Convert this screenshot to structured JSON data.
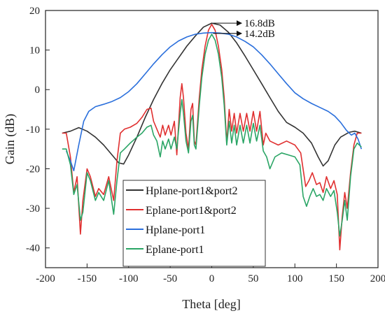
{
  "chart_data": {
    "type": "line",
    "xlabel": "Theta [deg]",
    "ylabel": "Gain (dB)",
    "xlim": [
      -200,
      200
    ],
    "ylim": [
      -45,
      20
    ],
    "xticks": [
      -200,
      -150,
      -100,
      -50,
      0,
      50,
      100,
      150,
      200
    ],
    "yticks": [
      -40,
      -30,
      -20,
      -10,
      0,
      10,
      20
    ],
    "grid": false,
    "legend_position": "bottom-left",
    "series": [
      {
        "name": "Hplane-port1&port2",
        "color": "#333333",
        "points": [
          [
            -180,
            -11
          ],
          [
            -170,
            -10.5
          ],
          [
            -160,
            -9.6
          ],
          [
            -150,
            -10.5
          ],
          [
            -140,
            -12
          ],
          [
            -130,
            -14
          ],
          [
            -120,
            -16.5
          ],
          [
            -112,
            -18.5
          ],
          [
            -106,
            -18.8
          ],
          [
            -100,
            -16.5
          ],
          [
            -90,
            -12
          ],
          [
            -80,
            -7
          ],
          [
            -70,
            -2.5
          ],
          [
            -60,
            1.5
          ],
          [
            -50,
            5
          ],
          [
            -40,
            8
          ],
          [
            -30,
            11
          ],
          [
            -20,
            13.5
          ],
          [
            -10,
            15.8
          ],
          [
            0,
            16.8
          ],
          [
            10,
            16.3
          ],
          [
            20,
            14.5
          ],
          [
            30,
            11.8
          ],
          [
            40,
            8.5
          ],
          [
            50,
            5
          ],
          [
            60,
            1.5
          ],
          [
            70,
            -2
          ],
          [
            80,
            -5.5
          ],
          [
            90,
            -8.3
          ],
          [
            100,
            -9.5
          ],
          [
            110,
            -11
          ],
          [
            120,
            -13.5
          ],
          [
            128,
            -17
          ],
          [
            134,
            -19.3
          ],
          [
            140,
            -18
          ],
          [
            148,
            -14
          ],
          [
            155,
            -12
          ],
          [
            165,
            -10.8
          ],
          [
            172,
            -10.5
          ],
          [
            180,
            -11
          ]
        ]
      },
      {
        "name": "Eplane-port1&port2",
        "color": "#e03030",
        "points": [
          [
            -180,
            -11
          ],
          [
            -175,
            -11
          ],
          [
            -170,
            -17
          ],
          [
            -166,
            -26
          ],
          [
            -162,
            -22
          ],
          [
            -158,
            -36.5
          ],
          [
            -155,
            -28
          ],
          [
            -150,
            -20
          ],
          [
            -146,
            -22
          ],
          [
            -140,
            -27
          ],
          [
            -136,
            -25
          ],
          [
            -130,
            -26.5
          ],
          [
            -124,
            -22
          ],
          [
            -118,
            -28
          ],
          [
            -114,
            -18
          ],
          [
            -110,
            -11
          ],
          [
            -105,
            -10
          ],
          [
            -98,
            -9.5
          ],
          [
            -90,
            -8.5
          ],
          [
            -84,
            -7
          ],
          [
            -78,
            -5
          ],
          [
            -73,
            -4.7
          ],
          [
            -70,
            -8
          ],
          [
            -66,
            -10
          ],
          [
            -62,
            -12
          ],
          [
            -59,
            -9
          ],
          [
            -56,
            -11.5
          ],
          [
            -52,
            -9
          ],
          [
            -49,
            -11.5
          ],
          [
            -45,
            -8
          ],
          [
            -42,
            -16.5
          ],
          [
            -38,
            -2
          ],
          [
            -36,
            1.5
          ],
          [
            -34,
            -2
          ],
          [
            -31,
            -11
          ],
          [
            -28,
            -15
          ],
          [
            -25,
            -5
          ],
          [
            -23,
            -3.5
          ],
          [
            -21,
            -13
          ],
          [
            -19,
            -14
          ],
          [
            -15,
            -2
          ],
          [
            -12,
            5
          ],
          [
            -8,
            11
          ],
          [
            -4,
            15
          ],
          [
            0,
            16.5
          ],
          [
            4,
            15
          ],
          [
            8,
            11
          ],
          [
            12,
            5
          ],
          [
            15,
            -2
          ],
          [
            18,
            -13.5
          ],
          [
            21,
            -5
          ],
          [
            24,
            -10.5
          ],
          [
            27,
            -6
          ],
          [
            30,
            -11
          ],
          [
            34,
            -6
          ],
          [
            38,
            -10.5
          ],
          [
            42,
            -6
          ],
          [
            46,
            -10.5
          ],
          [
            50,
            -5.5
          ],
          [
            54,
            -10.5
          ],
          [
            58,
            -5.5
          ],
          [
            62,
            -14
          ],
          [
            65,
            -11
          ],
          [
            70,
            -13
          ],
          [
            80,
            -14
          ],
          [
            90,
            -13
          ],
          [
            100,
            -14
          ],
          [
            107,
            -16
          ],
          [
            113,
            -24.5
          ],
          [
            117,
            -23
          ],
          [
            121,
            -21
          ],
          [
            126,
            -24
          ],
          [
            130,
            -23.5
          ],
          [
            134,
            -26
          ],
          [
            138,
            -22
          ],
          [
            143,
            -25
          ],
          [
            147,
            -23
          ],
          [
            151,
            -26.5
          ],
          [
            154,
            -40.5
          ],
          [
            157,
            -32
          ],
          [
            160,
            -26
          ],
          [
            163,
            -30
          ],
          [
            167,
            -21
          ],
          [
            171,
            -14
          ],
          [
            175,
            -11
          ],
          [
            180,
            -11
          ]
        ]
      },
      {
        "name": "Hplane-port1",
        "color": "#2a6fdc",
        "points": [
          [
            -175,
            -15.5
          ],
          [
            -170,
            -18
          ],
          [
            -166,
            -20.5
          ],
          [
            -160,
            -14
          ],
          [
            -154,
            -8
          ],
          [
            -148,
            -5.5
          ],
          [
            -140,
            -4.3
          ],
          [
            -130,
            -3.7
          ],
          [
            -120,
            -3
          ],
          [
            -110,
            -2
          ],
          [
            -100,
            -0.5
          ],
          [
            -90,
            1.5
          ],
          [
            -80,
            4
          ],
          [
            -70,
            6.5
          ],
          [
            -60,
            8.8
          ],
          [
            -50,
            10.8
          ],
          [
            -40,
            12.3
          ],
          [
            -30,
            13.3
          ],
          [
            -20,
            14
          ],
          [
            -10,
            14.3
          ],
          [
            0,
            14.4
          ],
          [
            10,
            14.3
          ],
          [
            20,
            14
          ],
          [
            30,
            13.3
          ],
          [
            40,
            12.2
          ],
          [
            50,
            10.8
          ],
          [
            60,
            8.8
          ],
          [
            70,
            6.5
          ],
          [
            80,
            4
          ],
          [
            90,
            1.5
          ],
          [
            100,
            -0.8
          ],
          [
            110,
            -2.3
          ],
          [
            120,
            -3.5
          ],
          [
            130,
            -4.5
          ],
          [
            140,
            -5.5
          ],
          [
            148,
            -6.7
          ],
          [
            155,
            -8.3
          ],
          [
            162,
            -10.3
          ],
          [
            168,
            -11.5
          ],
          [
            172,
            -11
          ],
          [
            176,
            -12.5
          ],
          [
            180,
            -15
          ]
        ]
      },
      {
        "name": "Eplane-port1",
        "color": "#2aa565",
        "points": [
          [
            -180,
            -15
          ],
          [
            -175,
            -15
          ],
          [
            -170,
            -19
          ],
          [
            -166,
            -26.5
          ],
          [
            -162,
            -24
          ],
          [
            -158,
            -33
          ],
          [
            -155,
            -31
          ],
          [
            -150,
            -21
          ],
          [
            -146,
            -23
          ],
          [
            -140,
            -28
          ],
          [
            -136,
            -26
          ],
          [
            -130,
            -28
          ],
          [
            -124,
            -23
          ],
          [
            -118,
            -31.5
          ],
          [
            -114,
            -23
          ],
          [
            -110,
            -16
          ],
          [
            -105,
            -15
          ],
          [
            -98,
            -13.5
          ],
          [
            -90,
            -12
          ],
          [
            -84,
            -11
          ],
          [
            -78,
            -9.5
          ],
          [
            -73,
            -9
          ],
          [
            -70,
            -11.5
          ],
          [
            -66,
            -13
          ],
          [
            -62,
            -17
          ],
          [
            -59,
            -13
          ],
          [
            -56,
            -15
          ],
          [
            -52,
            -12.5
          ],
          [
            -49,
            -15
          ],
          [
            -45,
            -12
          ],
          [
            -42,
            -15
          ],
          [
            -38,
            -6
          ],
          [
            -36,
            -2.5
          ],
          [
            -34,
            -6
          ],
          [
            -31,
            -13
          ],
          [
            -28,
            -16
          ],
          [
            -25,
            -8
          ],
          [
            -23,
            -6.5
          ],
          [
            -21,
            -14
          ],
          [
            -19,
            -15
          ],
          [
            -15,
            -4
          ],
          [
            -12,
            3
          ],
          [
            -8,
            9
          ],
          [
            -4,
            12.5
          ],
          [
            0,
            14
          ],
          [
            4,
            12.5
          ],
          [
            8,
            9
          ],
          [
            12,
            3
          ],
          [
            15,
            -4
          ],
          [
            18,
            -14
          ],
          [
            21,
            -8
          ],
          [
            24,
            -13.5
          ],
          [
            27,
            -9
          ],
          [
            30,
            -14
          ],
          [
            34,
            -9
          ],
          [
            38,
            -13.5
          ],
          [
            42,
            -9
          ],
          [
            46,
            -13.5
          ],
          [
            50,
            -8.5
          ],
          [
            54,
            -13
          ],
          [
            58,
            -9
          ],
          [
            62,
            -15.5
          ],
          [
            66,
            -17
          ],
          [
            70,
            -20
          ],
          [
            76,
            -17
          ],
          [
            84,
            -16
          ],
          [
            92,
            -16.5
          ],
          [
            100,
            -17
          ],
          [
            106,
            -19
          ],
          [
            110,
            -27
          ],
          [
            114,
            -29.5
          ],
          [
            118,
            -27
          ],
          [
            122,
            -25
          ],
          [
            126,
            -27
          ],
          [
            130,
            -26.5
          ],
          [
            134,
            -28
          ],
          [
            138,
            -25
          ],
          [
            143,
            -27
          ],
          [
            147,
            -25.5
          ],
          [
            151,
            -31
          ],
          [
            154,
            -37
          ],
          [
            157,
            -33
          ],
          [
            160,
            -28
          ],
          [
            163,
            -33
          ],
          [
            167,
            -22
          ],
          [
            171,
            -15
          ],
          [
            175,
            -13.5
          ],
          [
            180,
            -14.5
          ]
        ]
      }
    ],
    "annotations": [
      {
        "text": "16.8dB",
        "x": 0,
        "y": 16.8
      },
      {
        "text": "14.2dB",
        "x": 0,
        "y": 14.2
      }
    ]
  }
}
